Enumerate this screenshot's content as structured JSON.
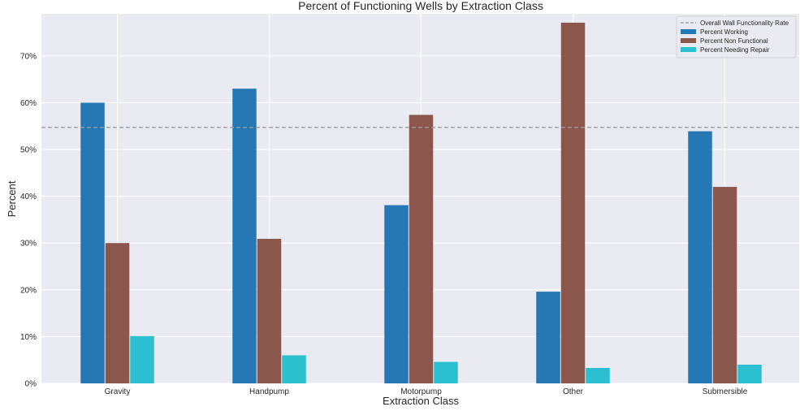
{
  "chart_data": {
    "type": "bar",
    "title": "Percent of Functioning Wells by Extraction Class",
    "xlabel": "Extraction Class",
    "ylabel": "Percent",
    "categories": [
      "Gravity",
      "Handpump",
      "Motorpump",
      "Other",
      "Submersible"
    ],
    "series": [
      {
        "name": "Percent Working",
        "color": "#2678b5",
        "values": [
          60.0,
          63.0,
          38.1,
          19.6,
          53.9
        ]
      },
      {
        "name": "Percent Non Functional",
        "color": "#8b564c",
        "values": [
          30.0,
          30.9,
          57.4,
          77.1,
          42.0
        ]
      },
      {
        "name": "Percent Needing Repair",
        "color": "#2ac0cf",
        "values": [
          10.1,
          6.0,
          4.6,
          3.3,
          4.0
        ]
      }
    ],
    "reference_line": {
      "name": "Overall Wall Functionality Rate",
      "value": 54.7,
      "color": "#9a9a9a",
      "style": "dashed"
    },
    "ylim": [
      0,
      79
    ],
    "yticks": [
      0,
      10,
      20,
      30,
      40,
      50,
      60,
      70
    ],
    "ytick_labels": [
      "0%",
      "10%",
      "20%",
      "30%",
      "40%",
      "50%",
      "60%",
      "70%"
    ],
    "grid": true,
    "legend_position": "top-right",
    "background": "#eaeaf2"
  }
}
